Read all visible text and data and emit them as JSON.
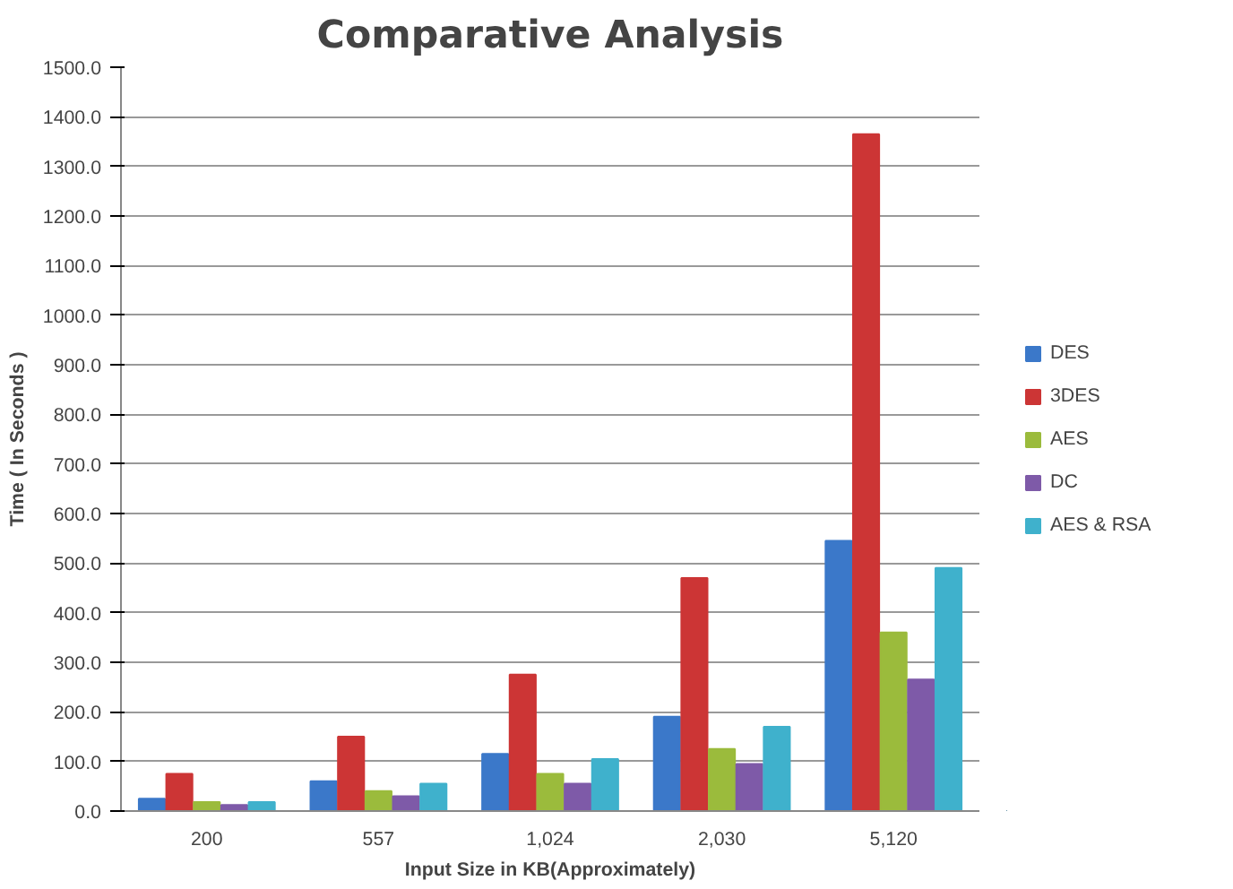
{
  "chart_data": {
    "type": "bar",
    "title": "Comparative Analysis",
    "xlabel": "Input Size in KB(Approximately)",
    "ylabel": "Time ( In Seconds )",
    "categories": [
      "200",
      "557",
      "1,024",
      "2,030",
      "5,120"
    ],
    "series": [
      {
        "name": "DES",
        "color": "#3b78c9",
        "values": [
          25,
          60,
          115,
          190,
          545
        ]
      },
      {
        "name": "3DES",
        "color": "#cc3535",
        "values": [
          75,
          150,
          275,
          470,
          1365
        ]
      },
      {
        "name": "AES",
        "color": "#9bbb3c",
        "values": [
          18,
          40,
          75,
          125,
          360
        ]
      },
      {
        "name": "DC",
        "color": "#7e5aa8",
        "values": [
          12,
          30,
          55,
          95,
          265
        ]
      },
      {
        "name": "AES & RSA",
        "color": "#3fb1cc",
        "values": [
          18,
          55,
          105,
          170,
          490
        ]
      }
    ],
    "ylim": [
      0,
      1500
    ],
    "yticks": [
      {
        "value": 0,
        "label": "0.0"
      },
      {
        "value": 100,
        "label": "100.0"
      },
      {
        "value": 200,
        "label": "200.0"
      },
      {
        "value": 300,
        "label": "300.0"
      },
      {
        "value": 400,
        "label": "400.0"
      },
      {
        "value": 500,
        "label": "500.0"
      },
      {
        "value": 600,
        "label": "600.0"
      },
      {
        "value": 700,
        "label": "700.0"
      },
      {
        "value": 800,
        "label": "800.0"
      },
      {
        "value": 900,
        "label": "900.0"
      },
      {
        "value": 1000,
        "label": "1000.0"
      },
      {
        "value": 1100,
        "label": "1100.0"
      },
      {
        "value": 1200,
        "label": "1200.0"
      },
      {
        "value": 1300,
        "label": "1300.0"
      },
      {
        "value": 1400,
        "label": "1400.0"
      },
      {
        "value": 1500,
        "label": "1500.0"
      }
    ],
    "grid": "y",
    "legend": "right"
  }
}
